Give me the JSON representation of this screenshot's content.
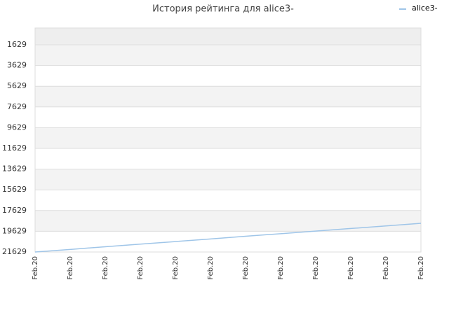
{
  "chart_data": {
    "type": "line",
    "title": "История рейтинга для alice3-",
    "categories": [
      "Feb.20",
      "Feb.20",
      "Feb.20",
      "Feb.20",
      "Feb.20",
      "Feb.20",
      "Feb.20",
      "Feb.20",
      "Feb.20",
      "Feb.20",
      "Feb.20",
      "Feb.20"
    ],
    "series": [
      {
        "name": "alice3-",
        "color": "#9fc5e8",
        "values": [
          21629,
          21380,
          21120,
          20870,
          20620,
          20370,
          20110,
          19860,
          19610,
          19360,
          19110,
          18860
        ]
      }
    ],
    "ylim": [
      7,
      21629
    ],
    "y_inverted": true,
    "yticks": [
      1629,
      3629,
      5629,
      7629,
      9629,
      11629,
      13629,
      15629,
      17629,
      19629,
      21629
    ],
    "grid": true,
    "legend": "top-right"
  }
}
